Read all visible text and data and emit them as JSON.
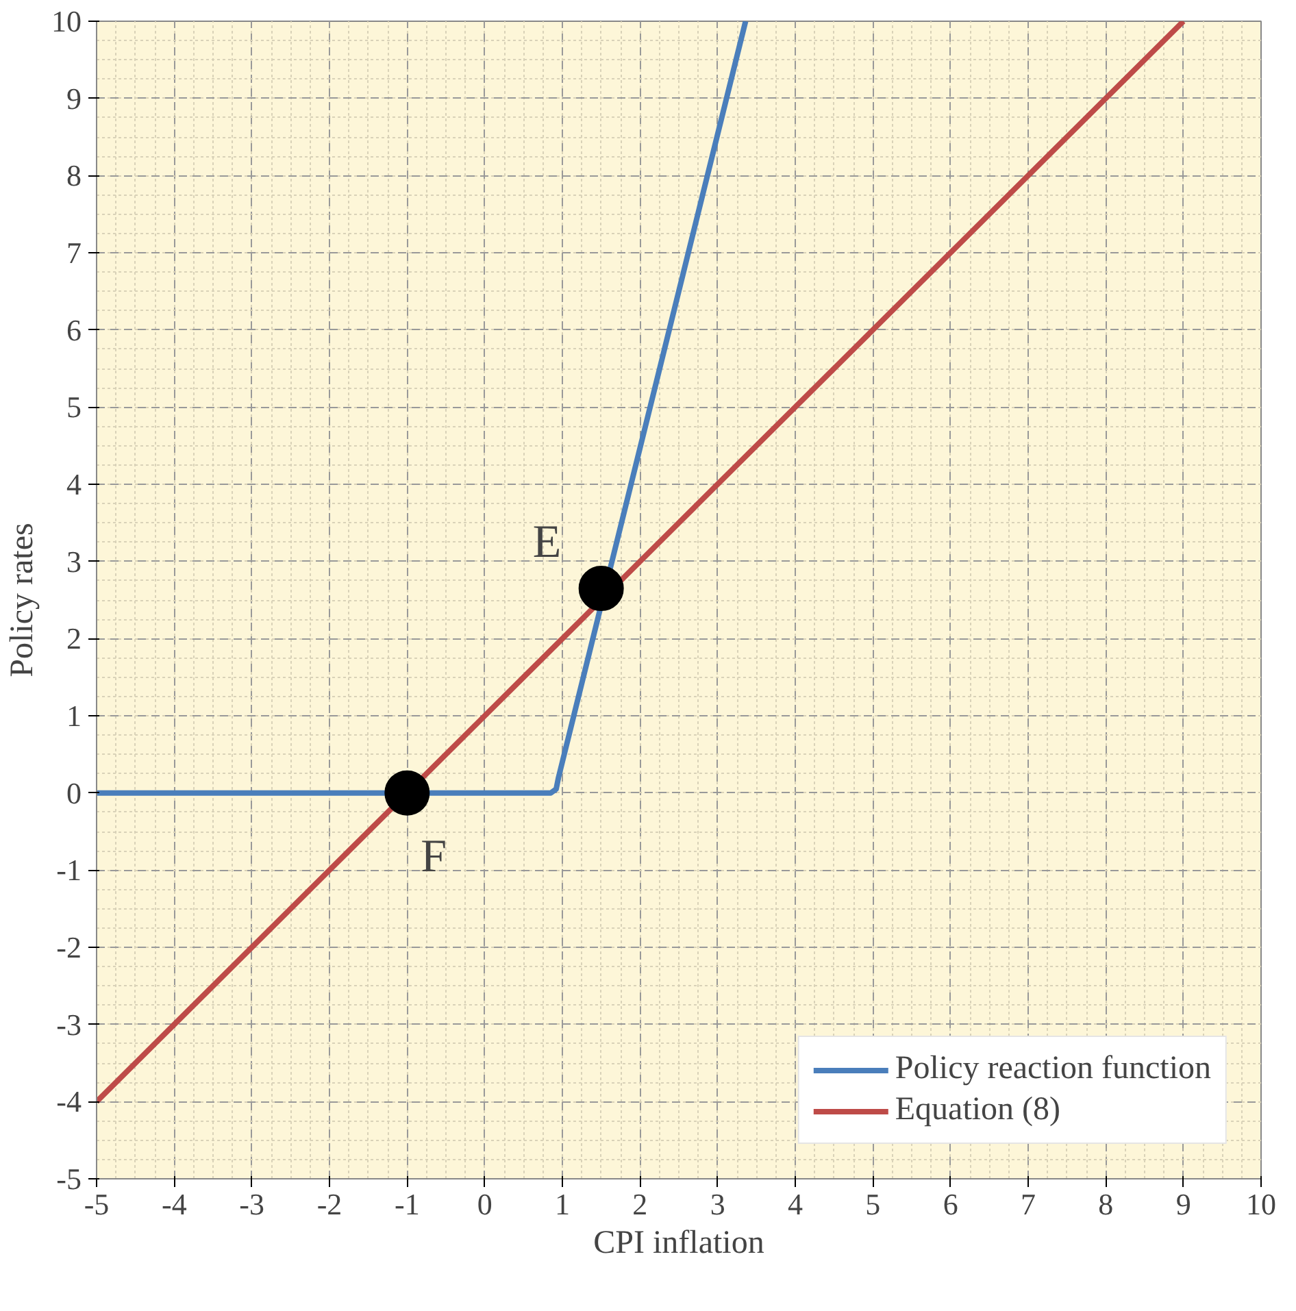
{
  "chart_data": {
    "type": "line",
    "xlabel": "CPI inflation",
    "ylabel": "Policy rates",
    "xlim": [
      -5,
      10
    ],
    "ylim": [
      -5,
      10
    ],
    "xticks": [
      -5,
      -4,
      -3,
      -2,
      -1,
      0,
      1,
      2,
      3,
      4,
      5,
      6,
      7,
      8,
      9,
      10
    ],
    "yticks": [
      -5,
      -4,
      -3,
      -2,
      -1,
      0,
      1,
      2,
      3,
      4,
      5,
      6,
      7,
      8,
      9,
      10
    ],
    "grid": true,
    "legend": "bottom right",
    "line_style": "solid",
    "series": [
      {
        "name": "Policy reaction function",
        "color": "#4a7ebb",
        "x": [
          -5,
          0.85,
          0.92,
          0.95,
          3.36
        ],
        "values": [
          0,
          0,
          0.05,
          0.2,
          10
        ]
      },
      {
        "name": "Equation (8)",
        "color": "#be4b48",
        "x": [
          -5,
          0,
          1,
          9
        ],
        "values": [
          -4,
          1,
          2,
          10
        ]
      },
      {
        "type": "scatter",
        "color": "#000000",
        "marker": "circle",
        "x": [
          -1,
          1.5
        ],
        "values": [
          0,
          2.65
        ]
      }
    ],
    "annotations": [
      {
        "text": "E",
        "x": 1.5,
        "y": 2.65
      },
      {
        "text": "F",
        "x": -1,
        "y": 0
      }
    ]
  }
}
